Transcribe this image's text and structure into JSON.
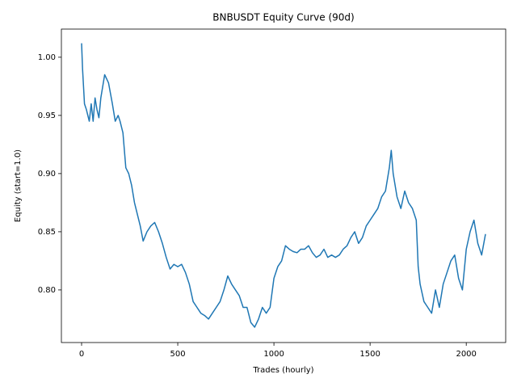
{
  "chart_data": {
    "type": "line",
    "title": "BNBUSDT Equity Curve (90d)",
    "xlabel": "Trades (hourly)",
    "ylabel": "Equity (start=1.0)",
    "x": [
      0,
      5,
      15,
      25,
      40,
      50,
      60,
      70,
      80,
      90,
      100,
      120,
      140,
      160,
      175,
      190,
      200,
      215,
      230,
      245,
      260,
      275,
      290,
      305,
      320,
      340,
      360,
      380,
      400,
      420,
      440,
      460,
      480,
      500,
      520,
      540,
      560,
      580,
      600,
      620,
      640,
      660,
      680,
      700,
      720,
      740,
      760,
      780,
      800,
      820,
      840,
      860,
      880,
      900,
      920,
      940,
      960,
      980,
      1000,
      1020,
      1040,
      1060,
      1080,
      1100,
      1120,
      1140,
      1160,
      1180,
      1200,
      1220,
      1240,
      1260,
      1280,
      1300,
      1320,
      1340,
      1360,
      1380,
      1400,
      1420,
      1440,
      1460,
      1480,
      1500,
      1520,
      1540,
      1560,
      1580,
      1600,
      1610,
      1620,
      1640,
      1660,
      1680,
      1700,
      1720,
      1740,
      1750,
      1760,
      1780,
      1800,
      1820,
      1840,
      1860,
      1880,
      1900,
      1920,
      1940,
      1960,
      1980,
      2000,
      2020,
      2040,
      2060,
      2080,
      2100
    ],
    "series": [
      {
        "name": "Equity",
        "color": "#1f77b4",
        "values": [
          1.012,
          0.99,
          0.96,
          0.955,
          0.945,
          0.96,
          0.945,
          0.965,
          0.955,
          0.948,
          0.965,
          0.985,
          0.978,
          0.96,
          0.945,
          0.95,
          0.945,
          0.935,
          0.905,
          0.9,
          0.89,
          0.875,
          0.865,
          0.855,
          0.842,
          0.85,
          0.855,
          0.858,
          0.85,
          0.84,
          0.828,
          0.818,
          0.822,
          0.82,
          0.822,
          0.815,
          0.805,
          0.79,
          0.785,
          0.78,
          0.778,
          0.775,
          0.78,
          0.785,
          0.79,
          0.8,
          0.812,
          0.805,
          0.8,
          0.795,
          0.785,
          0.785,
          0.772,
          0.768,
          0.775,
          0.785,
          0.78,
          0.785,
          0.81,
          0.82,
          0.825,
          0.838,
          0.835,
          0.833,
          0.832,
          0.835,
          0.835,
          0.838,
          0.832,
          0.828,
          0.83,
          0.835,
          0.828,
          0.83,
          0.828,
          0.83,
          0.835,
          0.838,
          0.845,
          0.85,
          0.84,
          0.845,
          0.855,
          0.86,
          0.865,
          0.87,
          0.88,
          0.885,
          0.905,
          0.92,
          0.9,
          0.88,
          0.87,
          0.885,
          0.875,
          0.87,
          0.86,
          0.82,
          0.805,
          0.79,
          0.785,
          0.78,
          0.8,
          0.785,
          0.805,
          0.815,
          0.825,
          0.83,
          0.81,
          0.8,
          0.835,
          0.85,
          0.86,
          0.84,
          0.83,
          0.848
        ]
      }
    ],
    "xlim": [
      -105,
      2205
    ],
    "xticks": [
      0,
      500,
      1000,
      1500,
      2000
    ],
    "ylim": [
      0.7548,
      1.0242
    ],
    "yticks": [
      {
        "value": 0.8,
        "label": "0.80"
      },
      {
        "value": 0.85,
        "label": "0.85"
      },
      {
        "value": 0.9,
        "label": "0.90"
      },
      {
        "value": 0.95,
        "label": "0.95"
      },
      {
        "value": 1.0,
        "label": "1.00"
      }
    ]
  }
}
